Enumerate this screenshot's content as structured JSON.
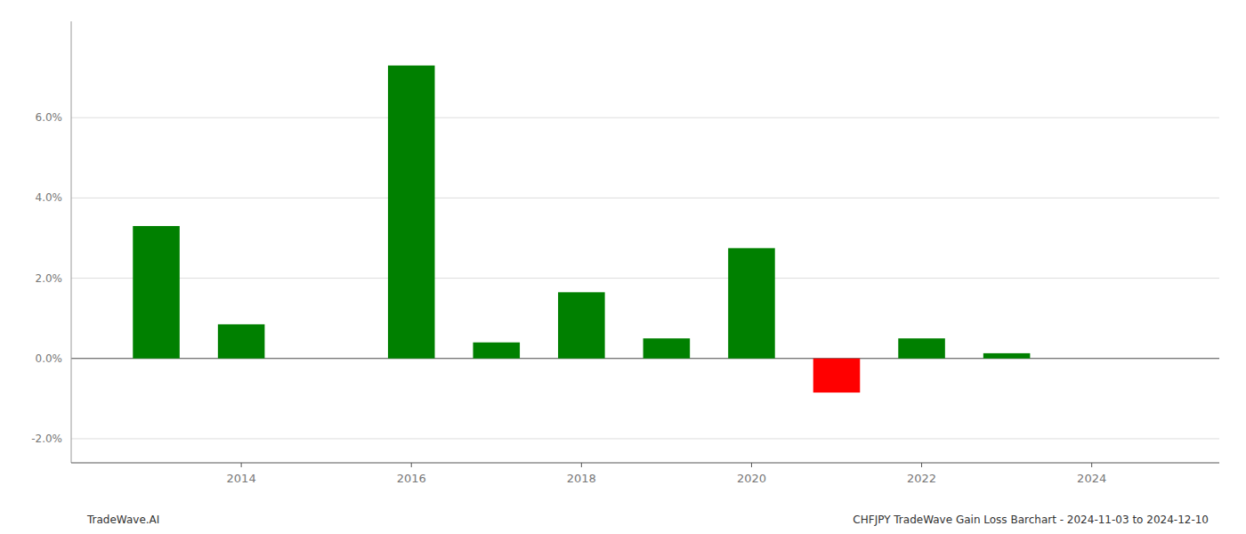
{
  "chart_data": {
    "type": "bar",
    "x": [
      2013,
      2014,
      2015,
      2016,
      2017,
      2018,
      2019,
      2020,
      2021,
      2022,
      2023,
      2024
    ],
    "values": [
      3.3,
      0.85,
      0.0,
      7.3,
      0.4,
      1.65,
      0.5,
      2.75,
      -0.85,
      0.5,
      0.13,
      0.0
    ],
    "colors": [
      "#008000",
      "#008000",
      "#008000",
      "#008000",
      "#008000",
      "#008000",
      "#008000",
      "#008000",
      "#ff0000",
      "#008000",
      "#008000",
      "#008000"
    ],
    "xlim": [
      2012.0,
      2025.5
    ],
    "xticks": [
      2014,
      2016,
      2018,
      2020,
      2022,
      2024
    ],
    "ylim": [
      -2.6,
      8.4
    ],
    "yticks": [
      {
        "value": -2.0,
        "label": "-2.0%"
      },
      {
        "value": 0.0,
        "label": "0.0%"
      },
      {
        "value": 2.0,
        "label": "2.0%"
      },
      {
        "value": 4.0,
        "label": "4.0%"
      },
      {
        "value": 6.0,
        "label": "6.0%"
      }
    ],
    "grid": true,
    "annotations": [
      "TradeWave.AI",
      "CHFJPY TradeWave Gain Loss Barchart - 2024-11-03 to 2024-12-10"
    ]
  }
}
